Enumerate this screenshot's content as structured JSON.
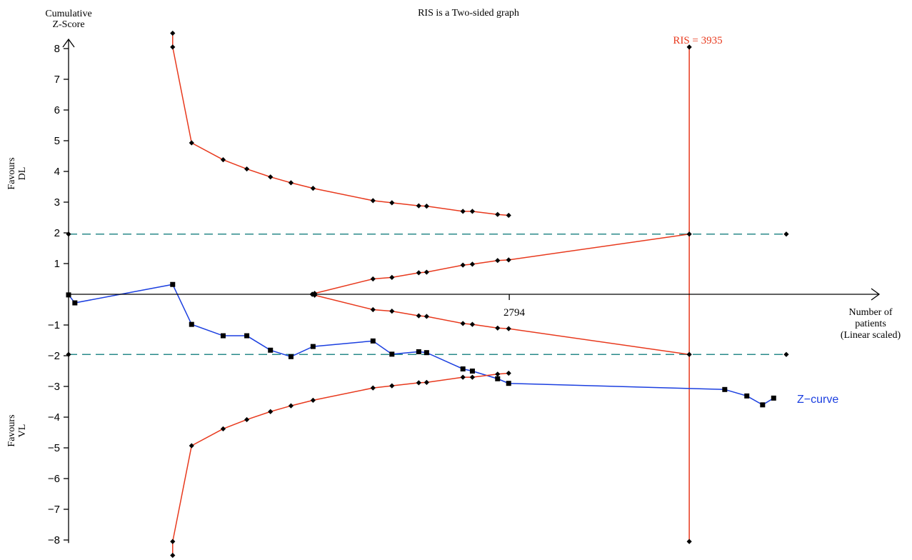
{
  "chart_data": {
    "type": "line",
    "title": "RIS is a Two-sided graph",
    "ylabel": "Cumulative\nZ-Score",
    "xlabel": "Number of\npatients\n(Linear scaled)",
    "favours_top": "Favours\nDL",
    "favours_bottom": "Favours\nVL",
    "ylim": [
      -8.5,
      8.5
    ],
    "yticks": [
      -8,
      -7,
      -6,
      -5,
      -4,
      -3,
      -2,
      -1,
      1,
      2,
      3,
      4,
      5,
      6,
      7,
      8
    ],
    "ytick_labels": [
      "−8",
      "−7",
      "−6",
      "−5",
      "−4",
      "−3",
      "−2",
      "−1",
      "1",
      "2",
      "3",
      "4",
      "5",
      "6",
      "7",
      "8"
    ],
    "xlim": [
      0,
      4600
    ],
    "xtick_value": 2794,
    "xtick_label": "2794",
    "ris_value": 3935,
    "ris_label": "RIS = 3935",
    "z_curve_label": "Z−curve",
    "conventional_boundary": 1.96,
    "colors": {
      "boundary": "#e8391d",
      "zcurve": "#1b3fe0",
      "dashed": "#2a8a8a",
      "axis": "#000000",
      "ris_label": "#e8391d"
    },
    "series": [
      {
        "name": "Z-curve",
        "marker": "square",
        "x": [
          0,
          40,
          660,
          780,
          980,
          1130,
          1280,
          1410,
          1550,
          1930,
          2050,
          2220,
          2270,
          2500,
          2560,
          2720,
          2790,
          4160,
          4300,
          4400,
          4470
        ],
        "y": [
          -0.02,
          -0.28,
          0.32,
          -0.98,
          -1.35,
          -1.35,
          -1.82,
          -2.03,
          -1.7,
          -1.52,
          -1.95,
          -1.87,
          -1.9,
          -2.43,
          -2.5,
          -2.75,
          -2.9,
          -3.1,
          -3.31,
          -3.6,
          -3.38
        ]
      },
      {
        "name": "Upper monitoring boundary",
        "marker": "diamond",
        "x": [
          660,
          660,
          780,
          980,
          1130,
          1280,
          1410,
          1550,
          1930,
          2050,
          2220,
          2270,
          2500,
          2560,
          2720,
          2790
        ],
        "y": [
          8.5,
          8.05,
          4.93,
          4.38,
          4.08,
          3.82,
          3.63,
          3.45,
          3.05,
          2.98,
          2.88,
          2.87,
          2.7,
          2.7,
          2.6,
          2.57
        ]
      },
      {
        "name": "Lower monitoring boundary",
        "marker": "diamond",
        "x": [
          660,
          660,
          780,
          980,
          1130,
          1280,
          1410,
          1550,
          1930,
          2050,
          2220,
          2270,
          2500,
          2560,
          2720,
          2790
        ],
        "y": [
          -8.5,
          -8.05,
          -4.93,
          -4.38,
          -4.08,
          -3.82,
          -3.63,
          -3.45,
          -3.05,
          -2.98,
          -2.88,
          -2.87,
          -2.7,
          -2.7,
          -2.6,
          -2.57
        ]
      },
      {
        "name": "Upper futility boundary",
        "marker": "diamond",
        "x": [
          1545,
          1560,
          1930,
          2050,
          2220,
          2270,
          2500,
          2560,
          2720,
          2790,
          3935
        ],
        "y": [
          0,
          0.03,
          0.5,
          0.55,
          0.7,
          0.72,
          0.95,
          0.98,
          1.1,
          1.12,
          1.96
        ]
      },
      {
        "name": "Lower futility boundary",
        "marker": "diamond",
        "x": [
          1545,
          1560,
          1930,
          2050,
          2220,
          2270,
          2500,
          2560,
          2720,
          2790,
          3935
        ],
        "y": [
          0,
          -0.03,
          -0.5,
          -0.55,
          -0.7,
          -0.72,
          -0.95,
          -0.98,
          -1.1,
          -1.12,
          -1.96
        ]
      }
    ],
    "conventional_markers_x": [
      0,
      4550
    ]
  }
}
